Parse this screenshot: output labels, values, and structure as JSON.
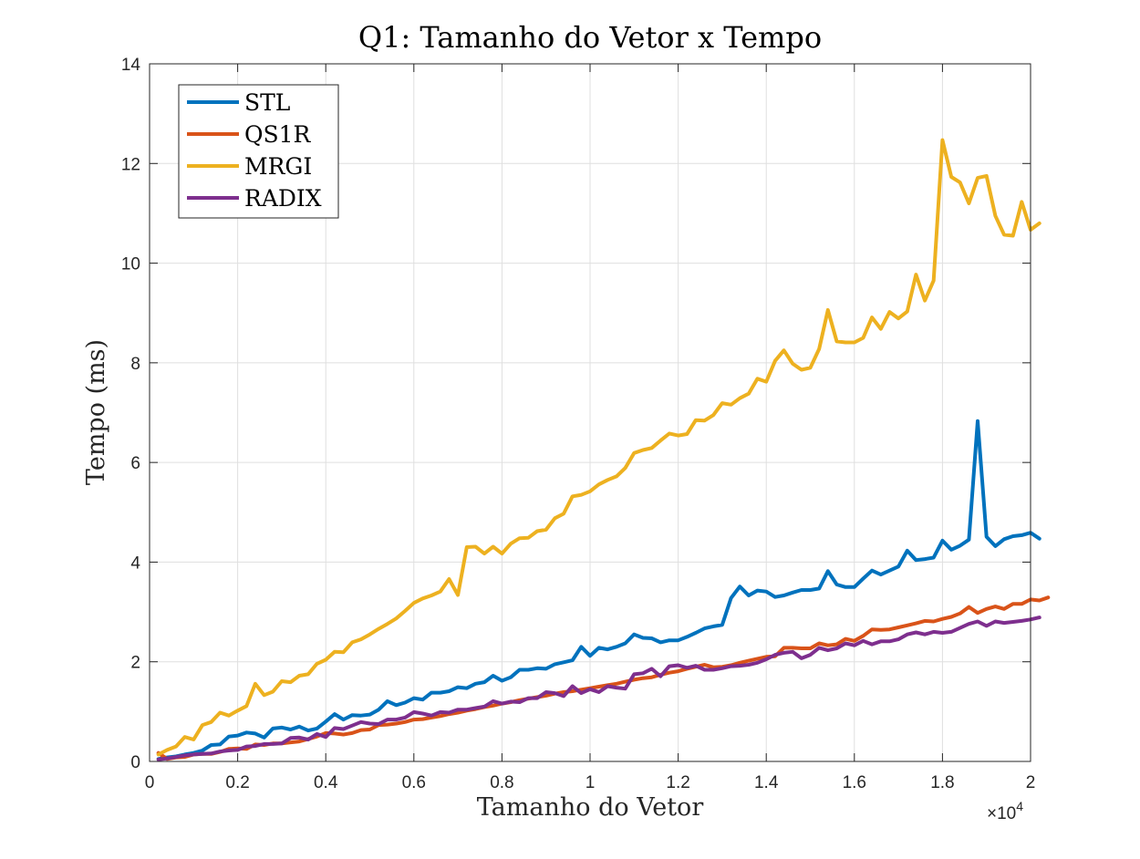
{
  "chart_data": {
    "type": "line",
    "title": "Q1: Tamanho do Vetor x Tempo",
    "xlabel": "Tamanho do Vetor",
    "ylabel": "Tempo (ms)",
    "x_exponent_label": "×10",
    "x_exponent_power": "4",
    "xlim": [
      0,
      20000
    ],
    "ylim": [
      0,
      14
    ],
    "x_ticks": [
      0,
      2000,
      4000,
      6000,
      8000,
      10000,
      12000,
      14000,
      16000,
      18000,
      20000
    ],
    "x_tick_labels": [
      "0",
      "0.2",
      "0.4",
      "0.6",
      "0.8",
      "1",
      "1.2",
      "1.4",
      "1.6",
      "1.8",
      "2"
    ],
    "y_ticks": [
      0,
      2,
      4,
      6,
      8,
      10,
      12,
      14
    ],
    "y_tick_labels": [
      "0",
      "2",
      "4",
      "6",
      "8",
      "10",
      "12",
      "14"
    ],
    "grid": true,
    "legend_position": "top-left",
    "x_start": 200,
    "x_step": 200,
    "series": [
      {
        "name": "STL",
        "color": "#0072BD",
        "values": [
          0.05,
          0.08,
          0.1,
          0.14,
          0.17,
          0.22,
          0.33,
          0.34,
          0.5,
          0.52,
          0.58,
          0.56,
          0.48,
          0.66,
          0.68,
          0.64,
          0.7,
          0.62,
          0.66,
          0.8,
          0.95,
          0.84,
          0.93,
          0.92,
          0.94,
          1.04,
          1.21,
          1.13,
          1.18,
          1.27,
          1.24,
          1.38,
          1.38,
          1.41,
          1.49,
          1.47,
          1.56,
          1.59,
          1.72,
          1.62,
          1.69,
          1.84,
          1.84,
          1.87,
          1.86,
          1.95,
          1.99,
          2.03,
          2.3,
          2.12,
          2.28,
          2.25,
          2.3,
          2.37,
          2.55,
          2.48,
          2.47,
          2.39,
          2.43,
          2.43,
          2.5,
          2.58,
          2.67,
          2.71,
          2.74,
          3.28,
          3.51,
          3.33,
          3.43,
          3.41,
          3.3,
          3.33,
          3.39,
          3.44,
          3.44,
          3.47,
          3.82,
          3.55,
          3.5,
          3.5,
          3.67,
          3.83,
          3.75,
          3.83,
          3.91,
          4.23,
          4.04,
          4.06,
          4.09,
          4.43,
          4.25,
          4.33,
          4.45,
          6.83,
          4.51,
          4.32,
          4.46,
          4.52,
          4.54,
          4.59,
          4.47
        ]
      },
      {
        "name": "QS1R",
        "color": "#D95319",
        "values": [
          0.17,
          0.05,
          0.08,
          0.09,
          0.14,
          0.15,
          0.15,
          0.19,
          0.25,
          0.26,
          0.25,
          0.34,
          0.33,
          0.36,
          0.36,
          0.38,
          0.4,
          0.45,
          0.5,
          0.57,
          0.56,
          0.54,
          0.57,
          0.63,
          0.64,
          0.73,
          0.74,
          0.76,
          0.79,
          0.84,
          0.85,
          0.88,
          0.91,
          0.95,
          0.98,
          1.02,
          1.05,
          1.09,
          1.12,
          1.16,
          1.19,
          1.23,
          1.26,
          1.29,
          1.32,
          1.36,
          1.39,
          1.41,
          1.44,
          1.47,
          1.5,
          1.53,
          1.56,
          1.6,
          1.64,
          1.67,
          1.69,
          1.74,
          1.78,
          1.81,
          1.86,
          1.9,
          1.94,
          1.89,
          1.9,
          1.93,
          1.98,
          2.02,
          2.06,
          2.1,
          2.11,
          2.28,
          2.28,
          2.27,
          2.27,
          2.37,
          2.33,
          2.35,
          2.46,
          2.42,
          2.52,
          2.65,
          2.64,
          2.65,
          2.69,
          2.73,
          2.77,
          2.82,
          2.81,
          2.86,
          2.9,
          2.97,
          3.1,
          2.98,
          3.06,
          3.11,
          3.06,
          3.16,
          3.16,
          3.25,
          3.23,
          3.29
        ]
      },
      {
        "name": "MRGI",
        "color": "#EDB120",
        "values": [
          0.14,
          0.23,
          0.3,
          0.49,
          0.44,
          0.73,
          0.79,
          0.98,
          0.92,
          1.02,
          1.11,
          1.56,
          1.33,
          1.4,
          1.61,
          1.59,
          1.72,
          1.75,
          1.96,
          2.04,
          2.2,
          2.19,
          2.39,
          2.45,
          2.55,
          2.66,
          2.76,
          2.87,
          3.02,
          3.18,
          3.27,
          3.33,
          3.41,
          3.66,
          3.34,
          4.3,
          4.31,
          4.17,
          4.31,
          4.17,
          4.37,
          4.48,
          4.49,
          4.62,
          4.65,
          4.88,
          4.97,
          5.32,
          5.35,
          5.42,
          5.56,
          5.65,
          5.72,
          5.89,
          6.19,
          6.25,
          6.29,
          6.44,
          6.58,
          6.54,
          6.57,
          6.85,
          6.84,
          6.95,
          7.19,
          7.16,
          7.29,
          7.38,
          7.68,
          7.62,
          8.04,
          8.25,
          7.98,
          7.86,
          7.9,
          8.28,
          9.06,
          8.43,
          8.41,
          8.41,
          8.5,
          8.91,
          8.68,
          9.02,
          8.89,
          9.03,
          9.77,
          9.25,
          9.65,
          12.47,
          11.73,
          11.62,
          11.2,
          11.71,
          11.75,
          10.95,
          10.57,
          10.55,
          11.23,
          10.67,
          10.8
        ]
      },
      {
        "name": "RADIX",
        "color": "#7E2F8E",
        "values": [
          0.04,
          0.06,
          0.09,
          0.12,
          0.14,
          0.15,
          0.16,
          0.2,
          0.22,
          0.23,
          0.3,
          0.31,
          0.35,
          0.35,
          0.36,
          0.47,
          0.48,
          0.44,
          0.55,
          0.49,
          0.67,
          0.65,
          0.72,
          0.79,
          0.76,
          0.75,
          0.84,
          0.84,
          0.88,
          0.99,
          0.96,
          0.92,
          0.99,
          0.98,
          1.04,
          1.04,
          1.07,
          1.1,
          1.21,
          1.16,
          1.2,
          1.19,
          1.27,
          1.27,
          1.39,
          1.37,
          1.31,
          1.51,
          1.37,
          1.45,
          1.39,
          1.51,
          1.48,
          1.46,
          1.75,
          1.77,
          1.86,
          1.71,
          1.91,
          1.93,
          1.88,
          1.92,
          1.84,
          1.84,
          1.87,
          1.91,
          1.92,
          1.94,
          1.98,
          2.05,
          2.14,
          2.18,
          2.2,
          2.07,
          2.14,
          2.28,
          2.23,
          2.27,
          2.37,
          2.33,
          2.42,
          2.35,
          2.41,
          2.41,
          2.45,
          2.55,
          2.59,
          2.55,
          2.6,
          2.58,
          2.6,
          2.68,
          2.76,
          2.81,
          2.72,
          2.81,
          2.78,
          2.8,
          2.82,
          2.85,
          2.89
        ]
      }
    ]
  }
}
